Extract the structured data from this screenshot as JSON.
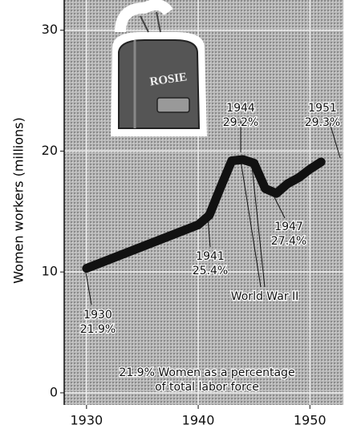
{
  "chart_data": {
    "type": "line",
    "ylabel": "Women workers (millions)",
    "illustration_text": "ROSIE",
    "x": [
      1930,
      1940,
      1941,
      1942,
      1943,
      1944,
      1945,
      1946,
      1947,
      1948,
      1949,
      1950,
      1951
    ],
    "series": [
      {
        "name": "Women workers",
        "color": "#111111",
        "values": [
          10.3,
          13.9,
          14.7,
          17.0,
          19.2,
          19.3,
          19.0,
          16.9,
          16.5,
          17.3,
          17.8,
          18.5,
          19.1
        ]
      }
    ],
    "xlim": [
      1928,
      1953
    ],
    "ylim": [
      -1,
      32.5
    ],
    "xticks": [
      1930,
      1940,
      1950
    ],
    "yticks": [
      0,
      10,
      20,
      30
    ],
    "grid": true,
    "annotations": [
      {
        "lines": [
          "1930",
          "21.9%"
        ]
      },
      {
        "lines": [
          "1941",
          "25.4%"
        ]
      },
      {
        "lines": [
          "1944",
          "29.2%"
        ]
      },
      {
        "lines": [
          "1947",
          "27.4%"
        ]
      },
      {
        "lines": [
          "1951",
          "29.3%"
        ]
      },
      {
        "lines": [
          "World War II"
        ]
      },
      {
        "lines": [
          "21.9% Women as a percentage",
          "of total labor force"
        ]
      }
    ]
  }
}
